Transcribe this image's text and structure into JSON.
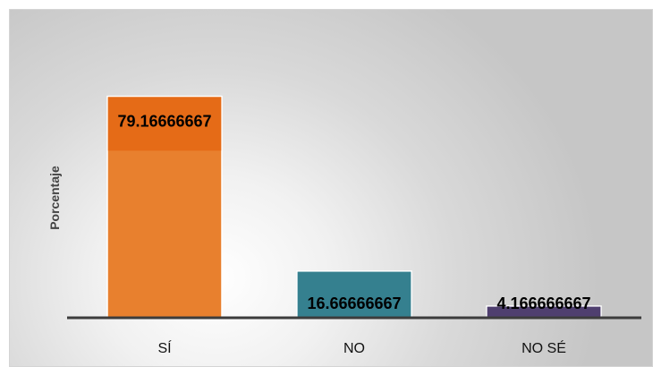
{
  "chart_data": {
    "type": "bar",
    "title": "",
    "xlabel": "",
    "ylabel": "Porcentaje",
    "categories": [
      "SÍ",
      "NO",
      "NO SÉ"
    ],
    "values": [
      79.16666667,
      16.66666667,
      4.166666667
    ],
    "value_labels": [
      "79.16666667",
      "16.66666667",
      "4.166666667"
    ],
    "ylim": [
      0,
      100
    ],
    "grid": false,
    "legend": "none",
    "colors": [
      "#e8802e",
      "#3a8a9c",
      "#5b4a7e"
    ],
    "band_colors": [
      "#e56b17",
      "#35808f",
      "#4f3f6f"
    ]
  }
}
